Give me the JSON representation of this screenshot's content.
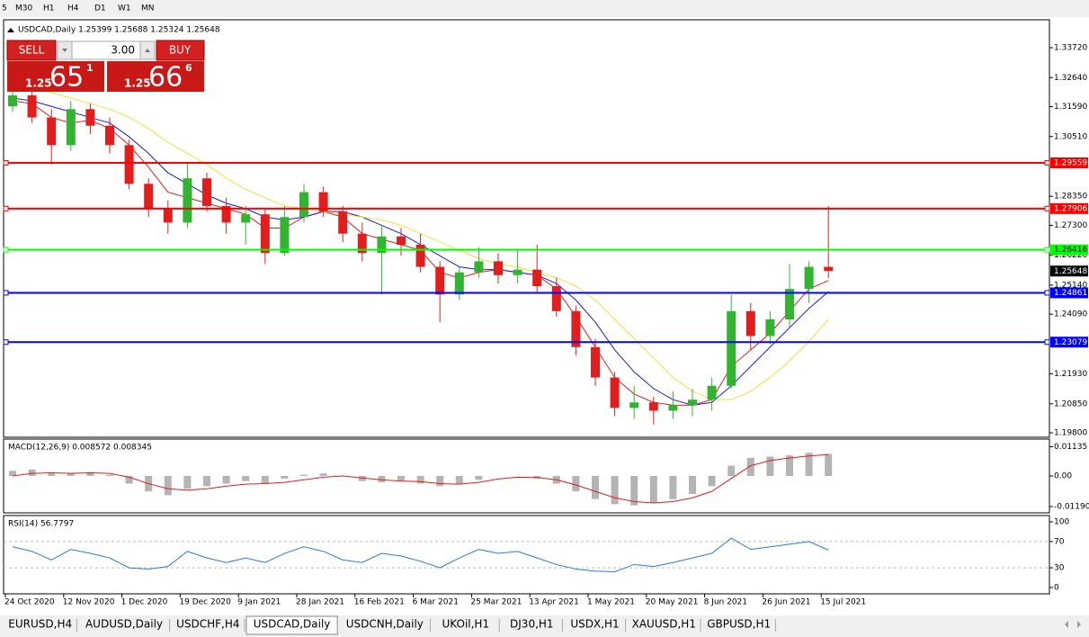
{
  "toolbar": {
    "timeframes": [
      "5",
      "M30",
      "H1",
      "H4",
      "D1",
      "W1",
      "MN"
    ]
  },
  "trade_panel": {
    "sell": "SELL",
    "buy": "BUY",
    "volume": "3.00",
    "bid": {
      "prefix": "1.25",
      "big": "65",
      "small": "1"
    },
    "ask": {
      "prefix": "1.25",
      "big": "66",
      "small": "6"
    }
  },
  "tabs": {
    "items": [
      "EURUSD,H4",
      "AUDUSD,Daily",
      "USDCHF,H4",
      "USDCAD,Daily",
      "USDCNH,Daily",
      "UKOil,H1",
      "DJ30,H1",
      "USDX,H1",
      "XAUUSD,H1",
      "GBPUSD,H1"
    ],
    "active": "USDCAD,Daily"
  },
  "chart_data": [
    {
      "type": "candlestick",
      "title": "USDCAD,Daily 1.25399 1.25688 1.25324 1.25648",
      "categories": [
        "24 Oct 2020",
        null,
        null,
        "12 Nov 2020",
        null,
        null,
        "1 Dec 2020",
        null,
        null,
        "19 Dec 2020",
        null,
        null,
        "9 Jan 2021",
        null,
        null,
        "28 Jan 2021",
        null,
        null,
        "16 Feb 2021",
        null,
        null,
        "6 Mar 2021",
        null,
        null,
        "25 Mar 2021",
        null,
        null,
        "13 Apr 2021",
        null,
        null,
        "1 May 2021",
        null,
        null,
        "20 May 2021",
        null,
        null,
        "8 Jun 2021",
        null,
        null,
        "26 Jun 2021",
        null,
        null,
        "15 Jul 2021"
      ],
      "ohlc": [
        [
          1.316,
          1.323,
          1.314,
          1.32
        ],
        [
          1.32,
          1.322,
          1.31,
          1.312
        ],
        [
          1.312,
          1.315,
          1.295,
          1.302
        ],
        [
          1.302,
          1.318,
          1.3,
          1.315
        ],
        [
          1.315,
          1.317,
          1.306,
          1.309
        ],
        [
          1.309,
          1.312,
          1.299,
          1.302
        ],
        [
          1.302,
          1.304,
          1.286,
          1.288
        ],
        [
          1.288,
          1.29,
          1.276,
          1.279
        ],
        [
          1.279,
          1.282,
          1.27,
          1.274
        ],
        [
          1.274,
          1.296,
          1.272,
          1.29
        ],
        [
          1.29,
          1.292,
          1.278,
          1.28
        ],
        [
          1.28,
          1.283,
          1.27,
          1.274
        ],
        [
          1.274,
          1.28,
          1.266,
          1.277
        ],
        [
          1.277,
          1.279,
          1.259,
          1.263
        ],
        [
          1.263,
          1.28,
          1.262,
          1.276
        ],
        [
          1.276,
          1.288,
          1.274,
          1.285
        ],
        [
          1.285,
          1.287,
          1.276,
          1.278
        ],
        [
          1.278,
          1.28,
          1.267,
          1.27
        ],
        [
          1.27,
          1.274,
          1.26,
          1.263
        ],
        [
          1.263,
          1.273,
          1.248,
          1.269
        ],
        [
          1.269,
          1.272,
          1.262,
          1.266
        ],
        [
          1.266,
          1.27,
          1.256,
          1.258
        ],
        [
          1.258,
          1.26,
          1.238,
          1.248
        ],
        [
          1.248,
          1.258,
          1.246,
          1.256
        ],
        [
          1.256,
          1.265,
          1.254,
          1.26
        ],
        [
          1.26,
          1.263,
          1.252,
          1.255
        ],
        [
          1.255,
          1.264,
          1.252,
          1.257
        ],
        [
          1.257,
          1.266,
          1.249,
          1.251
        ],
        [
          1.251,
          1.254,
          1.24,
          1.242
        ],
        [
          1.242,
          1.244,
          1.226,
          1.229
        ],
        [
          1.229,
          1.232,
          1.215,
          1.218
        ],
        [
          1.218,
          1.22,
          1.204,
          1.207
        ],
        [
          1.207,
          1.215,
          1.203,
          1.209
        ],
        [
          1.209,
          1.211,
          1.201,
          1.206
        ],
        [
          1.206,
          1.213,
          1.203,
          1.208
        ],
        [
          1.208,
          1.214,
          1.204,
          1.21
        ],
        [
          1.21,
          1.218,
          1.206,
          1.215
        ],
        [
          1.215,
          1.248,
          1.214,
          1.242
        ],
        [
          1.242,
          1.245,
          1.228,
          1.233
        ],
        [
          1.233,
          1.242,
          1.23,
          1.239
        ],
        [
          1.239,
          1.259,
          1.236,
          1.25
        ],
        [
          1.25,
          1.26,
          1.245,
          1.258
        ],
        [
          1.258,
          1.28,
          1.254,
          1.2565
        ]
      ],
      "up_color": "#32b432",
      "down_color": "#e01e1e",
      "lines": [
        {
          "color": "#e01e1e",
          "values": [
            1.318,
            1.317,
            1.312,
            1.31,
            1.311,
            1.308,
            1.302,
            1.294,
            1.285,
            1.283,
            1.281,
            1.279,
            1.277,
            1.272,
            1.272,
            1.276,
            1.278,
            1.276,
            1.27,
            1.268,
            1.266,
            1.264,
            1.256,
            1.254,
            1.256,
            1.257,
            1.256,
            1.255,
            1.25,
            1.24,
            1.229,
            1.218,
            1.212,
            1.209,
            1.208,
            1.208,
            1.21,
            1.222,
            1.228,
            1.234,
            1.242,
            1.25,
            1.253
          ]
        },
        {
          "color": "#1e1ec8",
          "values": [
            1.319,
            1.318,
            1.316,
            1.314,
            1.312,
            1.31,
            1.305,
            1.299,
            1.292,
            1.288,
            1.284,
            1.281,
            1.279,
            1.276,
            1.275,
            1.276,
            1.278,
            1.278,
            1.276,
            1.273,
            1.27,
            1.266,
            1.262,
            1.258,
            1.257,
            1.257,
            1.256,
            1.255,
            1.252,
            1.246,
            1.238,
            1.228,
            1.22,
            1.214,
            1.21,
            1.208,
            1.209,
            1.215,
            1.222,
            1.229,
            1.236,
            1.243,
            1.249
          ]
        },
        {
          "color": "#f0e040",
          "values": [
            1.325,
            1.323,
            1.321,
            1.319,
            1.317,
            1.315,
            1.312,
            1.308,
            1.303,
            1.299,
            1.295,
            1.29,
            1.286,
            1.283,
            1.28,
            1.279,
            1.278,
            1.277,
            1.276,
            1.275,
            1.273,
            1.27,
            1.267,
            1.264,
            1.261,
            1.259,
            1.258,
            1.256,
            1.254,
            1.251,
            1.246,
            1.239,
            1.232,
            1.225,
            1.218,
            1.213,
            1.21,
            1.21,
            1.213,
            1.218,
            1.224,
            1.231,
            1.239
          ]
        }
      ],
      "levels": [
        {
          "value": 1.29559,
          "color": "#ff0000"
        },
        {
          "value": 1.27906,
          "color": "#ff0000"
        },
        {
          "value": 1.26416,
          "color": "#00ff00"
        },
        {
          "value": 1.24861,
          "color": "#0000ff"
        },
        {
          "value": 1.23079,
          "color": "#0000ff"
        }
      ],
      "current_price": 1.25648,
      "ylim": [
        1.1964,
        1.3473
      ],
      "yticks": [
        {
          "value": 1.3372,
          "label": "1.33720"
        },
        {
          "value": 1.3264,
          "label": "1.32640"
        },
        {
          "value": 1.3159,
          "label": "1.31590"
        },
        {
          "value": 1.3051,
          "label": "1.30510"
        },
        {
          "value": 1.2835,
          "label": "1.28350"
        },
        {
          "value": 1.273,
          "label": "1.27300"
        },
        {
          "value": 1.2622,
          "label": "1.26220"
        },
        {
          "value": 1.2514,
          "label": "1.25140"
        },
        {
          "value": 1.2409,
          "label": "1.24090"
        },
        {
          "value": 1.2193,
          "label": "1.21930"
        },
        {
          "value": 1.2085,
          "label": "1.20850"
        },
        {
          "value": 1.198,
          "label": "1.19800"
        }
      ]
    },
    {
      "type": "macd",
      "title": "MACD(12,26,9) 0.008572 0.008345",
      "values": [
        0.002,
        0.0025,
        0.001,
        0.0012,
        0.0015,
        0.0005,
        -0.003,
        -0.006,
        -0.0075,
        -0.005,
        -0.004,
        -0.003,
        -0.002,
        -0.003,
        -0.001,
        0.0005,
        0.001,
        0,
        -0.002,
        -0.0025,
        -0.002,
        -0.003,
        -0.004,
        -0.003,
        -0.0015,
        0,
        0,
        -0.001,
        -0.003,
        -0.006,
        -0.009,
        -0.011,
        -0.0115,
        -0.0105,
        -0.009,
        -0.007,
        -0.004,
        0.004,
        0.007,
        0.0075,
        0.008,
        0.009,
        0.0086
      ],
      "color": "#b4b4b4",
      "signal": [
        0,
        0.001,
        0.0012,
        0.001,
        0.0012,
        0.001,
        -0.0005,
        -0.003,
        -0.005,
        -0.0055,
        -0.005,
        -0.004,
        -0.0032,
        -0.003,
        -0.0025,
        -0.0015,
        -0.0005,
        0,
        -0.0008,
        -0.0015,
        -0.002,
        -0.0022,
        -0.003,
        -0.0032,
        -0.0025,
        -0.0012,
        -0.0005,
        -0.0006,
        -0.0015,
        -0.0035,
        -0.006,
        -0.0085,
        -0.01,
        -0.0105,
        -0.01,
        -0.0085,
        -0.006,
        -0.001,
        0.004,
        0.006,
        0.007,
        0.0078,
        0.0083
      ],
      "signal_color": "#e01e1e",
      "ylim": [
        -0.01436,
        0.01435
      ],
      "yticks": [
        {
          "value": 0.01135,
          "label": "0.01135"
        },
        {
          "value": 0,
          "label": "0.00"
        },
        -0.011904
      ]
    },
    {
      "type": "line",
      "title": "RSI(14) 56.7797",
      "values": [
        62,
        55,
        42,
        58,
        52,
        45,
        30,
        28,
        32,
        55,
        45,
        38,
        45,
        38,
        52,
        62,
        55,
        42,
        38,
        52,
        48,
        40,
        30,
        45,
        58,
        52,
        55,
        45,
        35,
        28,
        25,
        24,
        35,
        32,
        38,
        45,
        52,
        75,
        58,
        62,
        66,
        70,
        57
      ],
      "color": "#2b7bd0",
      "levels": [
        70,
        30
      ],
      "ylim": [
        -9.6,
        109.6
      ],
      "yticks": [
        100,
        70,
        30,
        0
      ]
    }
  ]
}
